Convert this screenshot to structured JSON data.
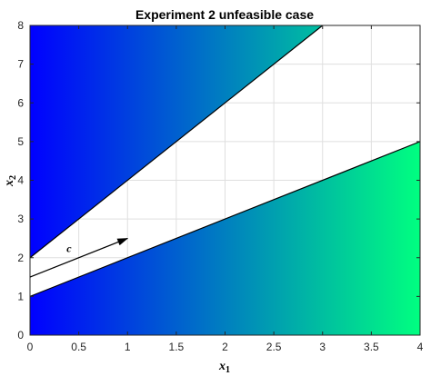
{
  "chart_data": {
    "type": "area",
    "title": "Experiment 2 unfeasible case",
    "xlabel": "x",
    "xlabel_sub": "1",
    "ylabel": "x",
    "ylabel_sub": "2",
    "xlim": [
      0,
      4
    ],
    "ylim": [
      0,
      8
    ],
    "x_ticks": [
      "0",
      "0.5",
      "1",
      "1.5",
      "2",
      "2.5",
      "3",
      "3.5",
      "4"
    ],
    "y_ticks": [
      "0",
      "1",
      "2",
      "3",
      "4",
      "5",
      "6",
      "7",
      "8"
    ],
    "grid": true,
    "regions": [
      {
        "name": "upper",
        "boundary": {
          "x": [
            0,
            3
          ],
          "y": [
            2,
            8
          ]
        },
        "polygon": [
          [
            0,
            2
          ],
          [
            3,
            8
          ],
          [
            0,
            8
          ]
        ]
      },
      {
        "name": "lower",
        "boundary": {
          "x": [
            0,
            4
          ],
          "y": [
            1,
            5
          ]
        },
        "polygon": [
          [
            0,
            0
          ],
          [
            4,
            0
          ],
          [
            4,
            5
          ],
          [
            0,
            1
          ]
        ]
      }
    ],
    "gradient": {
      "start_color": "#0000ff",
      "end_color": "#00ff80",
      "direction": "x"
    },
    "annotation": {
      "label": "c",
      "arrow_start": [
        0,
        1.5
      ],
      "arrow_end": [
        1,
        2.5
      ],
      "label_position": [
        0.4,
        2.15
      ]
    }
  }
}
